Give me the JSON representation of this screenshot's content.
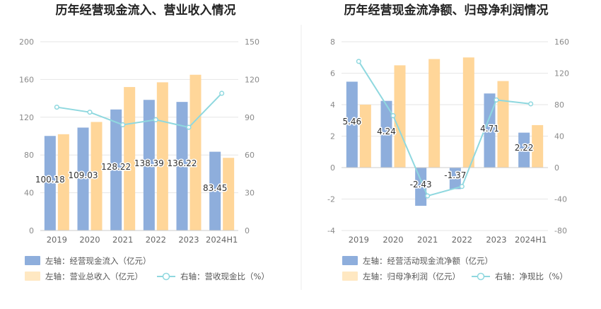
{
  "chart_data": [
    {
      "type": "bar",
      "title": "历年经营现金流入、营业收入情况",
      "categories": [
        "2019",
        "2020",
        "2021",
        "2022",
        "2023",
        "2024H1"
      ],
      "series": [
        {
          "name": "左轴：经营现金流入（亿元）",
          "axis": "left",
          "kind": "bar",
          "color": "#8eaedc",
          "values": [
            100.18,
            109.03,
            128.22,
            138.39,
            136.22,
            83.45
          ],
          "labels": [
            "100.18",
            "109.03",
            "128.22",
            "138.39",
            "136.22",
            "83.45"
          ]
        },
        {
          "name": "左轴：营业总收入（亿元）",
          "axis": "left",
          "kind": "bar",
          "color": "#ffd699",
          "values": [
            102,
            115,
            152,
            157,
            165,
            77
          ]
        },
        {
          "name": "右轴：营收现金比（%）",
          "axis": "right",
          "kind": "line",
          "color": "#8fd8df",
          "values": [
            98,
            94,
            84,
            88,
            82,
            109
          ]
        }
      ],
      "yleft": {
        "min": 0,
        "max": 200,
        "ticks": [
          "0",
          "40",
          "80",
          "120",
          "160",
          "200"
        ]
      },
      "yright": {
        "min": 0,
        "max": 150,
        "ticks": [
          "0",
          "30",
          "60",
          "90",
          "120",
          "150"
        ]
      },
      "grid": true,
      "legend": "bottom"
    },
    {
      "type": "bar",
      "title": "历年经营现金流净额、归母净利润情况",
      "categories": [
        "2019",
        "2020",
        "2021",
        "2022",
        "2023",
        "2024H1"
      ],
      "series": [
        {
          "name": "左轴：经营活动现金流净额（亿元）",
          "axis": "left",
          "kind": "bar",
          "color": "#8eaedc",
          "values": [
            5.46,
            4.24,
            -2.43,
            -1.37,
            4.71,
            2.22
          ],
          "labels": [
            "5.46",
            "4.24",
            "-2.43",
            "-1.37",
            "4.71",
            "2.22"
          ]
        },
        {
          "name": "左轴：归母净利润（亿元）",
          "axis": "left",
          "kind": "bar",
          "color": "#ffd699",
          "values": [
            4.0,
            6.5,
            6.9,
            7.0,
            5.5,
            2.7
          ]
        },
        {
          "name": "右轴：净现比（%）",
          "axis": "right",
          "kind": "line",
          "color": "#8fd8df",
          "values": [
            135,
            66,
            -36,
            -24,
            86,
            81
          ]
        }
      ],
      "yleft": {
        "min": -4,
        "max": 8,
        "ticks": [
          "-4",
          "-2",
          "0",
          "2",
          "4",
          "6",
          "8"
        ]
      },
      "yright": {
        "min": -80,
        "max": 160,
        "ticks": [
          "-80",
          "-40",
          "0",
          "40",
          "80",
          "120",
          "160"
        ]
      },
      "grid": true,
      "legend": "bottom"
    }
  ]
}
